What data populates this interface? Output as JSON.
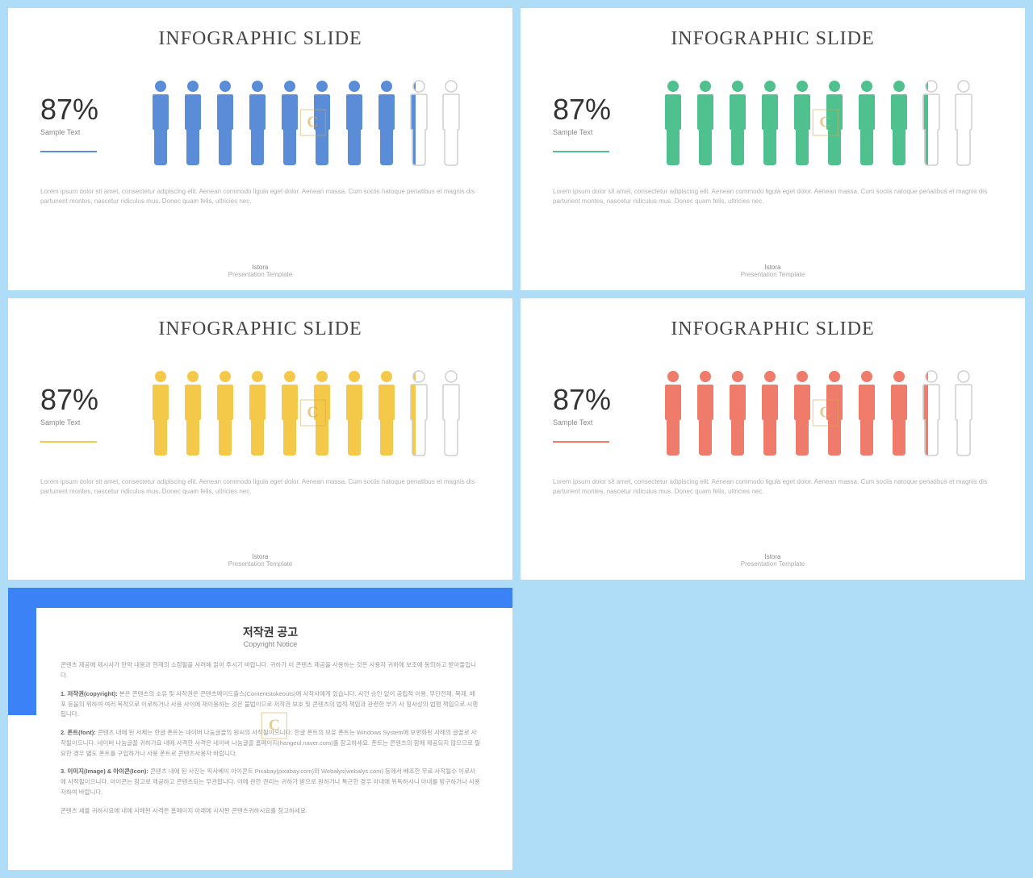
{
  "background_color": "#afddf7",
  "slides": [
    {
      "title": "INFOGRAPHIC SLIDE",
      "percentage": "87%",
      "sample_label": "Sample Text",
      "accent_color": "#5a8cd8",
      "filled_people": 8,
      "partial_people": 1,
      "empty_people": 1,
      "outline_color": "#cfcfcf",
      "lorem": "Lorem ipsum dolor sit amet, consectetur adipiscing elit. Aenean commodo ligula eget dolor. Aenean massa. Cum sociis natoque penatibus et magnis dis parturient montes, nascetur ridiculus mus. Donec quam felis, ultricies nec.",
      "footer_brand": "Istora",
      "footer_sub": "Presentation Template",
      "watermark": "C"
    },
    {
      "title": "INFOGRAPHIC SLIDE",
      "percentage": "87%",
      "sample_label": "Sample Text",
      "accent_color": "#4fc18e",
      "filled_people": 8,
      "partial_people": 1,
      "empty_people": 1,
      "outline_color": "#cfcfcf",
      "lorem": "Lorem ipsum dolor sit amet, consectetur adipiscing elit. Aenean commodo ligula eget dolor. Aenean massa. Cum sociis natoque penatibus et magnis dis parturient montes, nascetur ridiculus mus. Donec quam felis, ultricies nec.",
      "footer_brand": "Istora",
      "footer_sub": "Presentation Template",
      "watermark": "C"
    },
    {
      "title": "INFOGRAPHIC SLIDE",
      "percentage": "87%",
      "sample_label": "Sample Text",
      "accent_color": "#f4c94a",
      "filled_people": 8,
      "partial_people": 1,
      "empty_people": 1,
      "outline_color": "#cfcfcf",
      "lorem": "Lorem ipsum dolor sit amet, consectetur adipiscing elit. Aenean commodo ligula eget dolor. Aenean massa. Cum sociis natoque penatibus et magnis dis parturient montes, nascetur ridiculus mus. Donec quam felis, ultricies nec.",
      "footer_brand": "Istora",
      "footer_sub": "Presentation Template",
      "watermark": "C"
    },
    {
      "title": "INFOGRAPHIC SLIDE",
      "percentage": "87%",
      "sample_label": "Sample Text",
      "accent_color": "#ef7b6a",
      "filled_people": 8,
      "partial_people": 1,
      "empty_people": 1,
      "outline_color": "#cfcfcf",
      "lorem": "Lorem ipsum dolor sit amet, consectetur adipiscing elit. Aenean commodo ligula eget dolor. Aenean massa. Cum sociis natoque penatibus et magnis dis parturient montes, nascetur ridiculus mus. Donec quam felis, ultricies nec.",
      "footer_brand": "Istora",
      "footer_sub": "Presentation Template",
      "watermark": "C"
    }
  ],
  "copyright": {
    "blue_bar_color": "#3b82f6",
    "title": "저작권 공고",
    "subtitle": "Copyright Notice",
    "intro": "콘텐츠 제공에 제시사가 만약 내용과 현재의 소정될을 사려해 읽어 주시기 바랍니다. 귀하가 이 콘텐츠 제공을 사용하는 것은 사용자 귀하에 보조에 동의하고 받아들입니다.",
    "s1_title": "1. 저작권(copyright):",
    "s1_body": "본은 콘텐츠의 소유 및 사작권은 콘텐츠메이드출스(Contentstokeouts)에 사작사에게 있습니다. 사전 승인 없이 공립적 이용, 무단전재, 복제, 배포 등을의 위하여 여러 목적으로 이로하거나 사용 사이에 재이용하는 것은 불법이므로 저작권 보호 및 콘텐츠의 법적 책임과 관련한 부기 사 형사상의 법행 책임으로 시행 됩니다.",
    "s2_title": "2. 폰트(font):",
    "s2_body": "콘텐츠 내에 된 서체는 한글 폰트는 네이버 나눔글꼴의 원씨의 사작될이으니다. 한글 폰트의 보유 폰트는 Windows System에 보편화된 사례의 글꼴로 사작될이으니다. 네이버 나눔글꼴 귀하가요 내에 사격한 사격은 네이버 나눔글꼴 홈페이지(hangeul.naver.com)를 참고하세요. 폰트는 콘텐츠의 함에 제공되지 않으므로 필요한 경우 별도 폰트를 구입하거나 사용 폰트로 콘텐츠사용자 바랍니다.",
    "s3_title": "3. 이미지(Image) & 아이콘(Icon):",
    "s3_body": "콘텐츠 내에 된 사진는 픽사베이 아이콘트 Pixabay(pixabay.com)와 Webalys(webalys.com) 등에서 배조한 무료 사작될수 이로사에 사작될이으니다. 아이콘는 참고로 제공하고 콘텐츠되는 무관합니다. 이에 관한 권리는 귀하가 받으로 원하거나 특근한 경우 아내에 위독하시니 아내를 방구하거나 사용자하여 바랍니다.",
    "outro": "콘텐츠 세율 귀하시요에 내에 사례된 사격은 홈페이지 아래에 시사된 콘텐츠귀하시요를 참고하세요.",
    "watermark": "C"
  }
}
